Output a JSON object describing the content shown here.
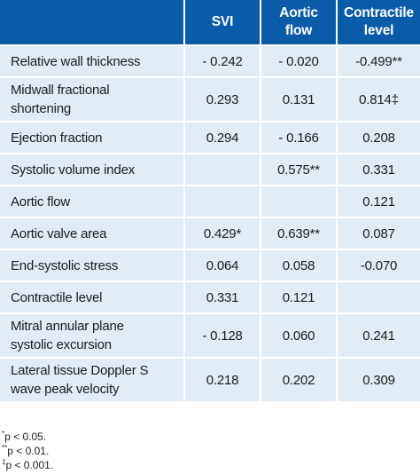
{
  "header": {
    "stub": "",
    "col1": "SVI",
    "col2_line1": "Aortic",
    "col2_line2": "flow",
    "col3_line1": "Contractile",
    "col3_line2": "level"
  },
  "rows": [
    {
      "label_line1": "Relative wall thickness",
      "label_line2": "",
      "svi": "- 0.242",
      "flow": "- 0.020",
      "level": "-0.499**"
    },
    {
      "label_line1": "Midwall fractional",
      "label_line2": "shortening",
      "svi": "0.293",
      "flow": "0.131",
      "level": "0.814‡"
    },
    {
      "label_line1": "Ejection fraction",
      "label_line2": "",
      "svi": "0.294",
      "flow": "- 0.166",
      "level": "0.208"
    },
    {
      "label_line1": "Systolic volume index",
      "label_line2": "",
      "svi": "",
      "flow": "0.575**",
      "level": "0.331"
    },
    {
      "label_line1": "Aortic flow",
      "label_line2": "",
      "svi": "",
      "flow": "",
      "level": "0.121"
    },
    {
      "label_line1": "Aortic valve area",
      "label_line2": "",
      "svi": "0.429*",
      "flow": "0.639**",
      "level": "0.087"
    },
    {
      "label_line1": "End-systolic stress",
      "label_line2": "",
      "svi": "0.064",
      "flow": "0.058",
      "level": "-0.070"
    },
    {
      "label_line1": "Contractile level",
      "label_line2": "",
      "svi": "0.331",
      "flow": "0.121",
      "level": ""
    },
    {
      "label_line1": "Mitral annular plane",
      "label_line2": "systolic excursion",
      "svi": "- 0.128",
      "flow": "0.060",
      "level": "0.241"
    },
    {
      "label_line1": "Lateral tissue Doppler S",
      "label_line2": "wave peak velocity",
      "svi": "0.218",
      "flow": "0.202",
      "level": "0.309"
    }
  ],
  "footnotes": {
    "note1_symbol": "*",
    "note1_text": "p < 0.05.",
    "note2_symbol": "**",
    "note2_text": "p < 0.01.",
    "note3_symbol": "‡",
    "note3_text": "p < 0.001."
  },
  "colors": {
    "header_bg": "#0b5ca8",
    "cell_bg": "#e2ecf6"
  }
}
